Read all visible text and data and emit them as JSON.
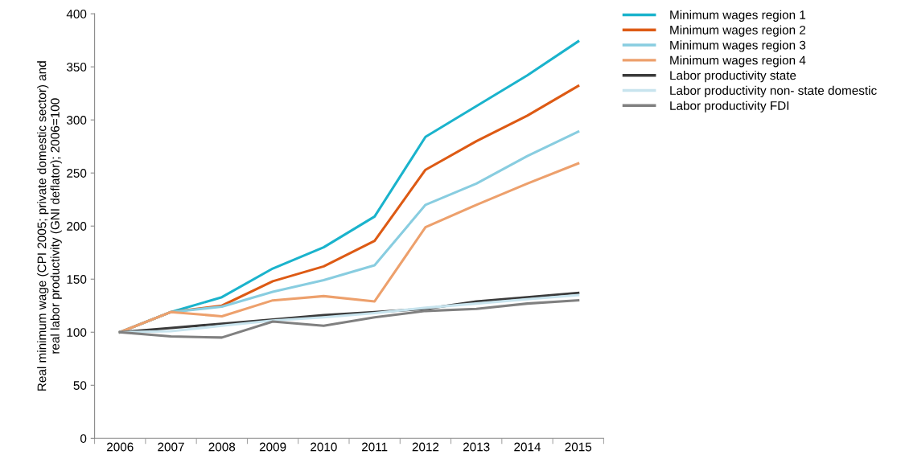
{
  "chart_data": {
    "type": "line",
    "ylabel": "Real minimum wage (CPI 2005; private domestic sector) and\nreal labor productivity (GNI deflator); 2006=100",
    "categories": [
      "2006",
      "2007",
      "2008",
      "2009",
      "2010",
      "2011",
      "2012",
      "2013",
      "2014",
      "2015"
    ],
    "ylim": [
      0,
      400
    ],
    "yticks": [
      0,
      50,
      100,
      150,
      200,
      250,
      300,
      350,
      400
    ],
    "grid": false,
    "legend": "top right",
    "marker": "none",
    "line_style": "solid",
    "series": [
      {
        "name": "Minimum wages region 1",
        "color": "#1ab3cc",
        "values": [
          100,
          119,
          133,
          160,
          180,
          209,
          284,
          313,
          342,
          374
        ]
      },
      {
        "name": "Minimum wages region 2",
        "color": "#dd5a14",
        "values": [
          100,
          119,
          125,
          148,
          162,
          186,
          253,
          280,
          304,
          332
        ]
      },
      {
        "name": "Minimum wages region 3",
        "color": "#88cde0",
        "values": [
          100,
          119,
          124,
          138,
          149,
          163,
          220,
          240,
          266,
          289
        ]
      },
      {
        "name": "Minimum wages region 4",
        "color": "#eda06c",
        "values": [
          100,
          119,
          115,
          130,
          134,
          129,
          199,
          220,
          240,
          259
        ]
      },
      {
        "name": "Labor productivity state",
        "color": "#3a3a3a",
        "values": [
          100,
          104,
          108,
          112,
          116,
          119,
          122,
          129,
          133,
          137
        ]
      },
      {
        "name": "Labor productivity non- state domestic",
        "color": "#c8e4ee",
        "values": [
          100,
          101,
          106,
          111,
          114,
          118,
          123,
          127,
          131,
          135
        ]
      },
      {
        "name": "Labor productivity FDI",
        "color": "#808080",
        "values": [
          100,
          96,
          95,
          110,
          106,
          114,
          120,
          122,
          127,
          130
        ]
      }
    ]
  }
}
